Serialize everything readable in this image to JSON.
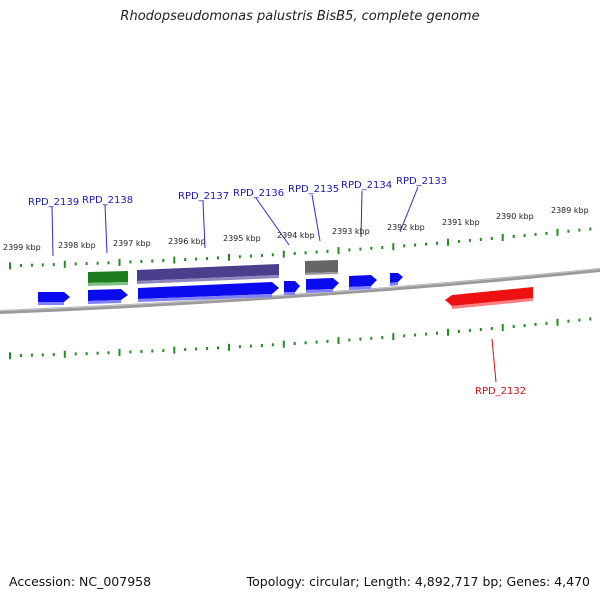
{
  "title": "Rhodopseudomonas palustris BisB5, complete genome",
  "footer": {
    "accession": "Accession: NC_007958",
    "summary": "Topology: circular; Length: 4,892,717 bp; Genes: 4,470"
  },
  "colors": {
    "forward_gene": "#0a0aee",
    "forward_gene_other": "#1e7d1e",
    "forward_gene_long": "#4a3f8c",
    "reverse_gene_highlight": "#ee1111",
    "gray_gene": "#666666",
    "backbone": "#808080",
    "ticks": "#228b22",
    "label_blue": "#1a1ab4",
    "label_red": "#cc1111"
  },
  "kbp_labels": [
    "2399 kbp",
    "2398 kbp",
    "2397 kbp",
    "2396 kbp",
    "2395 kbp",
    "2394 kbp",
    "2393 kbp",
    "2392 kbp",
    "2391 kbp",
    "2390 kbp",
    "2389 kbp"
  ],
  "gene_labels": [
    "RPD_2139",
    "RPD_2138",
    "RPD_2137",
    "RPD_2136",
    "RPD_2135",
    "RPD_2134",
    "RPD_2133",
    "RPD_2132"
  ]
}
